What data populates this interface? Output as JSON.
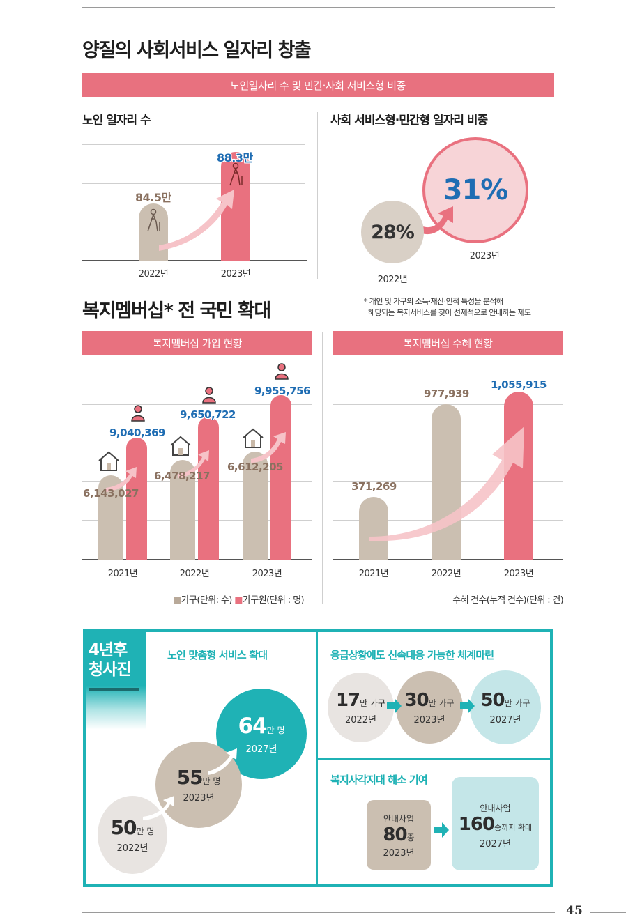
{
  "section1": {
    "title": "양질의 사회서비스 일자리 창출",
    "band": "노인일자리 수 및 민간·사회 서비스형 비중",
    "left_title": "노인 일자리 수",
    "right_title": "사회 서비스형·민간형 일자리 비중",
    "jobs_chart": {
      "type": "bar",
      "categories": [
        "2022년",
        "2023년"
      ],
      "values": [
        84.5,
        88.3
      ],
      "value_labels": [
        "84.5만",
        "88.3만"
      ]
    },
    "share": {
      "v2022": "28%",
      "y2022": "2022년",
      "v2023": "31%",
      "y2023": "2023년"
    }
  },
  "section2": {
    "title": "복지멤버십* 전 국민 확대",
    "footnote_line1": "* 개인 및 가구의 소득·재산·인적 특성을 분석해",
    "footnote_line2": "해당되는 복지서비스를 찾아 선제적으로 안내하는 제도",
    "left_band": "복지멤버십 가입 현황",
    "right_band": "복지멤버십 수혜 현황",
    "left_legend": "■가구(단위: 수) ■가구원(단위 : 명)",
    "legend_household": "가구(단위: 수)",
    "legend_members": "가구원(단위 : 명)",
    "right_legend": "수혜 건수(누적 건수)(단위 : 건)"
  },
  "chart_data": [
    {
      "type": "bar",
      "categories": [
        "2022년",
        "2023년"
      ],
      "series": [
        {
          "values": [
            84.5,
            88.3
          ]
        }
      ],
      "value_labels": [
        "84.5만",
        "88.3만"
      ]
    },
    {
      "type": "bar",
      "categories": [
        "2021년",
        "2022년",
        "2023년"
      ],
      "series": [
        {
          "name": "가구(단위: 수)",
          "values": [
            6143027,
            6478217,
            6612205
          ],
          "labels": [
            "6,143,027",
            "6,478,217",
            "6,612,205"
          ],
          "color": "#cbbfb1"
        },
        {
          "name": "가구원(단위 : 명)",
          "values": [
            9040369,
            9650722,
            9955756
          ],
          "labels": [
            "9,040,369",
            "9,650,722",
            "9,955,756"
          ],
          "color": "#e9717f"
        }
      ]
    },
    {
      "type": "bar",
      "categories": [
        "2021년",
        "2022년",
        "2023년"
      ],
      "series": [
        {
          "name": "수혜 건수(누적 건수)(단위 : 건)",
          "values": [
            371269,
            977939,
            1055915
          ],
          "labels": [
            "371,269",
            "977,939",
            "1,055,915"
          ]
        }
      ]
    }
  ],
  "box": {
    "badge_line1": "4년후",
    "badge_line2": "청사진",
    "elderly": {
      "title": "노인 맞춤형 서비스 확대",
      "items": [
        {
          "num": "50",
          "unit": "만 명",
          "year": "2022년"
        },
        {
          "num": "55",
          "unit": "만 명",
          "year": "2023년"
        },
        {
          "num": "64",
          "unit": "만 명",
          "year": "2027년"
        }
      ]
    },
    "emergency": {
      "title": "응급상황에도 신속대응 가능한 체계마련",
      "items": [
        {
          "num": "17",
          "unit": "만 가구",
          "year": "2022년"
        },
        {
          "num": "30",
          "unit": "만 가구",
          "year": "2023년"
        },
        {
          "num": "50",
          "unit": "만 가구",
          "year": "2027년"
        }
      ]
    },
    "blindspot": {
      "title": "복지사각지대 해소 기여",
      "left": {
        "label": "안내사업",
        "num": "80",
        "unit": "종",
        "year": "2023년"
      },
      "right": {
        "label": "안내사업",
        "num": "160",
        "unit": "종까지 확대",
        "year": "2027년"
      }
    }
  },
  "page_number": "45",
  "colors": {
    "pink": "#e9717f",
    "beige": "#cbbfb1",
    "teal": "#1fb2b5",
    "blue": "#1f6db3"
  }
}
